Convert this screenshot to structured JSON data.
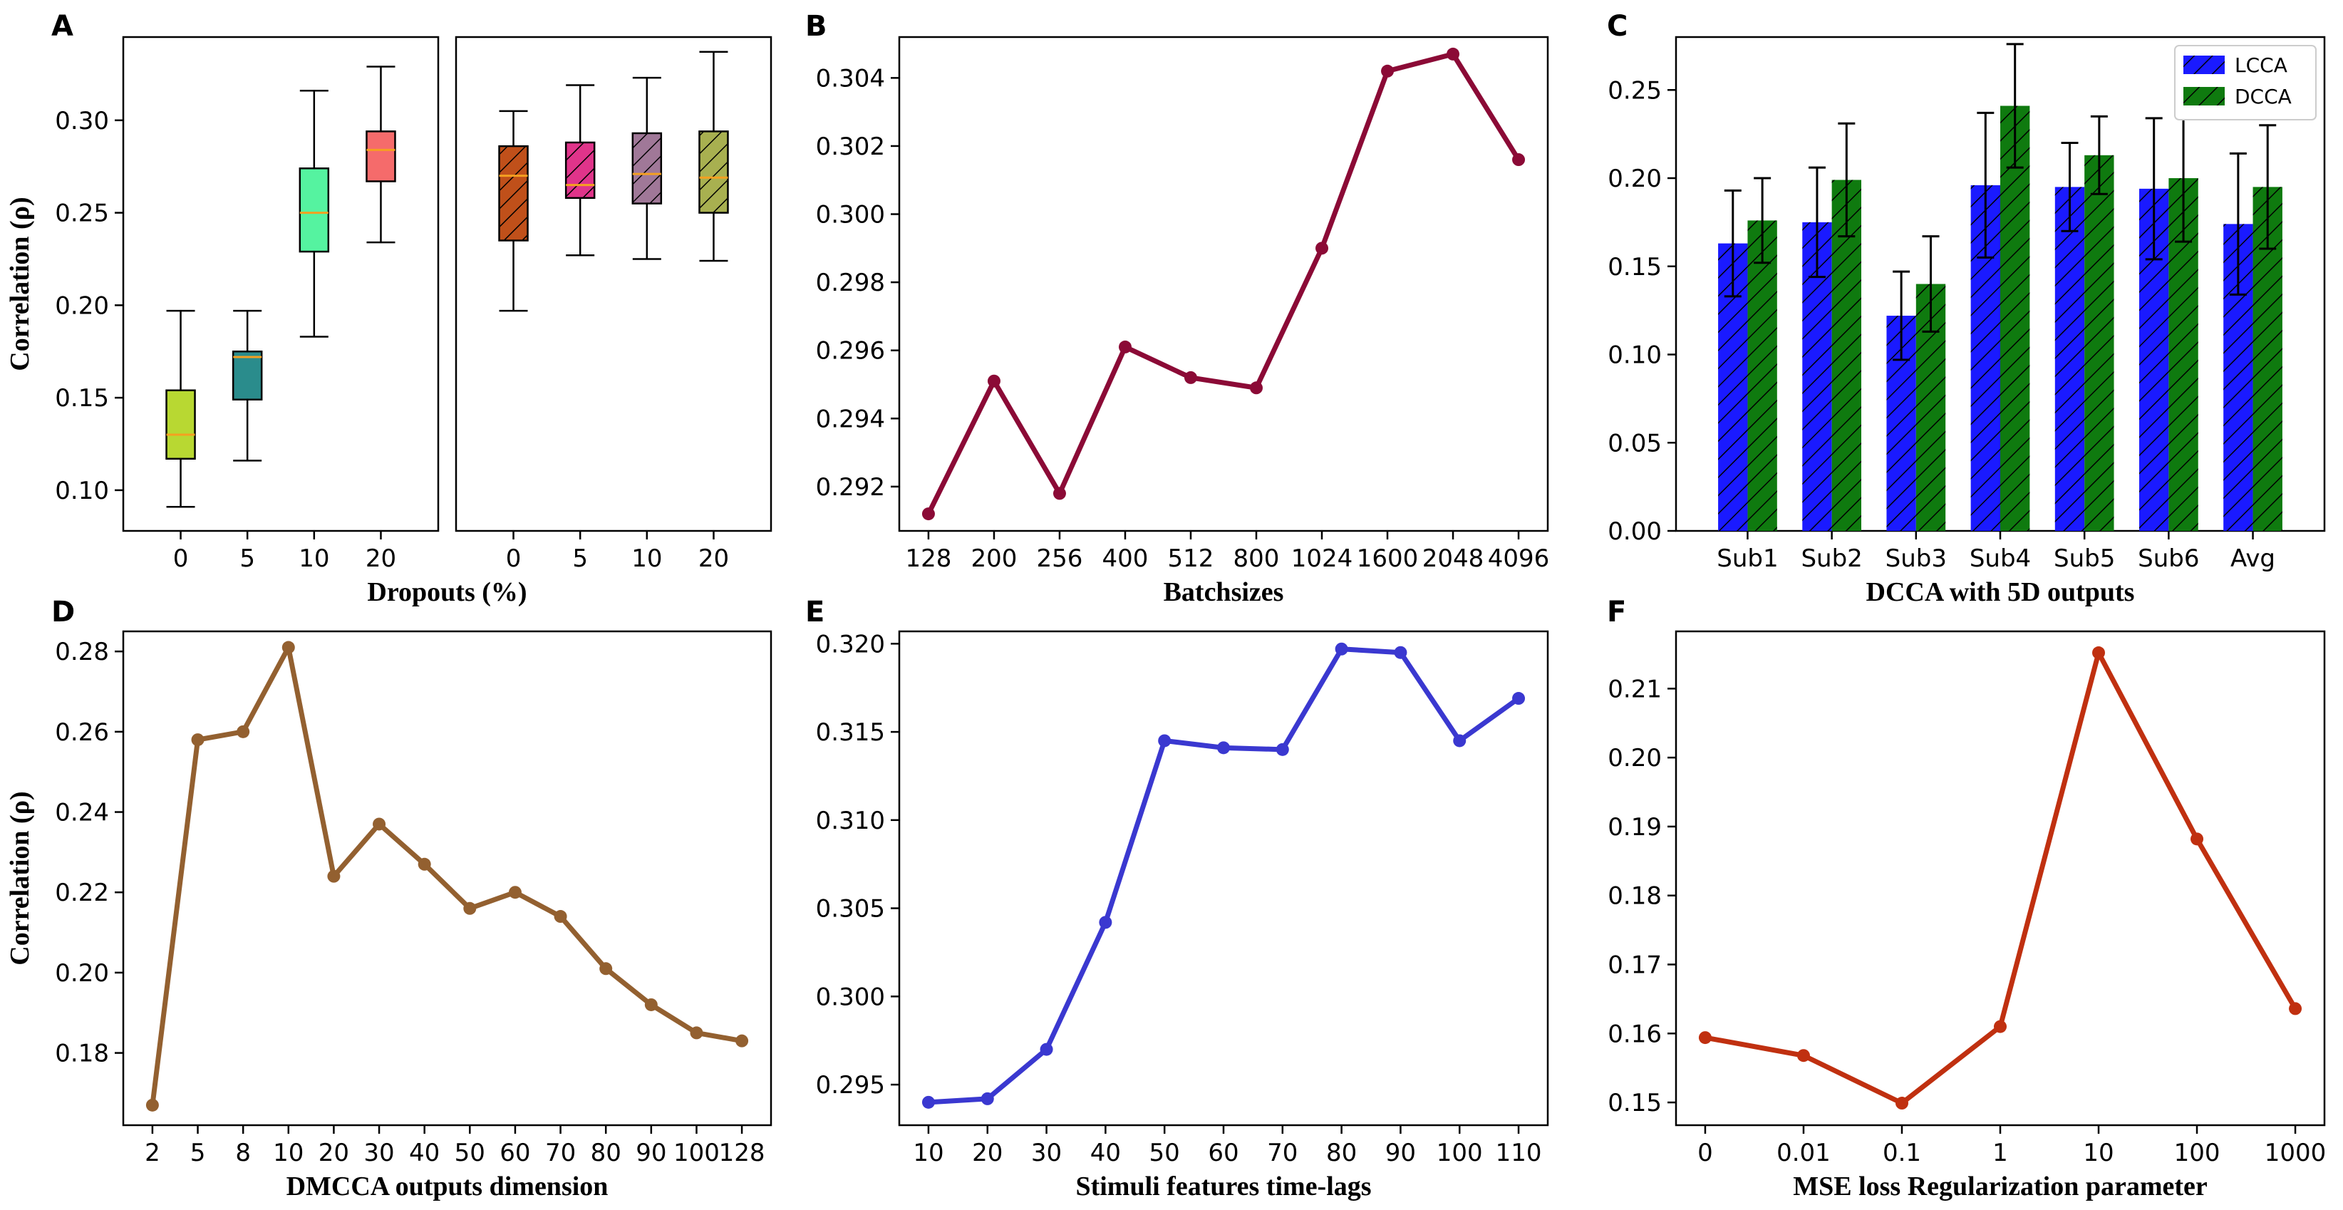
{
  "figure_id": "multi-panel-results",
  "chart_data": [
    {
      "panel": "A",
      "type": "box",
      "xlabel": "Dropouts (%)",
      "ylabel": "Correlation (ρ)",
      "ylim": [
        0.078,
        0.345
      ],
      "yticks": [
        0.1,
        0.15,
        0.2,
        0.25,
        0.3
      ],
      "ytick_labels": [
        "0.10",
        "0.15",
        "0.20",
        "0.25",
        "0.30"
      ],
      "groups": [
        {
          "name": "left",
          "categories": [
            "0",
            "5",
            "10",
            "20"
          ],
          "boxes": [
            {
              "whisker_low": 0.091,
              "q1": 0.117,
              "median": 0.13,
              "q3": 0.154,
              "whisker_high": 0.197,
              "color": "#b8d832",
              "hatch": false
            },
            {
              "whisker_low": 0.116,
              "q1": 0.149,
              "median": 0.172,
              "q3": 0.175,
              "whisker_high": 0.197,
              "color": "#2a8c8c",
              "hatch": false
            },
            {
              "whisker_low": 0.183,
              "q1": 0.229,
              "median": 0.25,
              "q3": 0.274,
              "whisker_high": 0.316,
              "color": "#55f3a0",
              "hatch": false
            },
            {
              "whisker_low": 0.234,
              "q1": 0.267,
              "median": 0.284,
              "q3": 0.294,
              "whisker_high": 0.329,
              "color": "#f56b6b",
              "hatch": false
            }
          ]
        },
        {
          "name": "right",
          "categories": [
            "0",
            "5",
            "10",
            "20"
          ],
          "boxes": [
            {
              "whisker_low": 0.197,
              "q1": 0.235,
              "median": 0.27,
              "q3": 0.286,
              "whisker_high": 0.305,
              "color": "#c0501a",
              "hatch": true
            },
            {
              "whisker_low": 0.227,
              "q1": 0.258,
              "median": 0.265,
              "q3": 0.288,
              "whisker_high": 0.319,
              "color": "#e0348a",
              "hatch": true
            },
            {
              "whisker_low": 0.225,
              "q1": 0.255,
              "median": 0.271,
              "q3": 0.293,
              "whisker_high": 0.323,
              "color": "#a07898",
              "hatch": true
            },
            {
              "whisker_low": 0.224,
              "q1": 0.25,
              "median": 0.269,
              "q3": 0.294,
              "whisker_high": 0.337,
              "color": "#a8b050",
              "hatch": true
            }
          ]
        }
      ]
    },
    {
      "panel": "B",
      "type": "line",
      "xlabel": "Batchsizes",
      "ylabel": "",
      "color": "#8b0a36",
      "ylim": [
        0.2907,
        0.3052
      ],
      "yticks": [
        0.292,
        0.294,
        0.296,
        0.298,
        0.3,
        0.302,
        0.304
      ],
      "ytick_labels": [
        "0.292",
        "0.294",
        "0.296",
        "0.298",
        "0.300",
        "0.302",
        "0.304"
      ],
      "categories": [
        "128",
        "200",
        "256",
        "400",
        "512",
        "800",
        "1024",
        "1600",
        "2048",
        "4096"
      ],
      "values": [
        0.2912,
        0.2951,
        0.2918,
        0.2961,
        0.2952,
        0.2949,
        0.299,
        0.3042,
        0.3047,
        0.3016
      ]
    },
    {
      "panel": "C",
      "type": "bar",
      "xlabel": "DCCA with 5D outputs",
      "ylabel": "",
      "ylim": [
        0.0,
        0.28
      ],
      "yticks": [
        0.0,
        0.05,
        0.1,
        0.15,
        0.2,
        0.25
      ],
      "ytick_labels": [
        "0.00",
        "0.05",
        "0.10",
        "0.15",
        "0.20",
        "0.25"
      ],
      "categories": [
        "Sub1",
        "Sub2",
        "Sub3",
        "Sub4",
        "Sub5",
        "Sub6",
        "Avg"
      ],
      "legend_position": "top-right",
      "series": [
        {
          "name": "LCCA",
          "color": "#1a1aff",
          "values": [
            0.163,
            0.175,
            0.122,
            0.196,
            0.195,
            0.194,
            0.174
          ],
          "errors": [
            0.03,
            0.031,
            0.025,
            0.041,
            0.025,
            0.04,
            0.04
          ]
        },
        {
          "name": "DCCA",
          "color": "#0f7a0f",
          "values": [
            0.176,
            0.199,
            0.14,
            0.241,
            0.213,
            0.2,
            0.195
          ],
          "errors": [
            0.024,
            0.032,
            0.027,
            0.035,
            0.022,
            0.036,
            0.035
          ]
        }
      ]
    },
    {
      "panel": "D",
      "type": "line",
      "xlabel": "DMCCA outputs dimension",
      "ylabel": "Correlation (ρ)",
      "color": "#936030",
      "ylim": [
        0.162,
        0.285
      ],
      "yticks": [
        0.18,
        0.2,
        0.22,
        0.24,
        0.26,
        0.28
      ],
      "ytick_labels": [
        "0.18",
        "0.20",
        "0.22",
        "0.24",
        "0.26",
        "0.28"
      ],
      "categories": [
        "2",
        "5",
        "8",
        "10",
        "20",
        "30",
        "40",
        "50",
        "60",
        "70",
        "80",
        "90",
        "100",
        "128"
      ],
      "values": [
        0.167,
        0.258,
        0.26,
        0.281,
        0.224,
        0.237,
        0.227,
        0.216,
        0.22,
        0.214,
        0.201,
        0.192,
        0.185,
        0.183
      ]
    },
    {
      "panel": "E",
      "type": "line",
      "xlabel": "Stimuli features time-lags",
      "ylabel": "",
      "color": "#3a38d0",
      "ylim": [
        0.2927,
        0.3207
      ],
      "yticks": [
        0.295,
        0.3,
        0.305,
        0.31,
        0.315,
        0.32
      ],
      "ytick_labels": [
        "0.295",
        "0.300",
        "0.305",
        "0.310",
        "0.315",
        "0.320"
      ],
      "categories": [
        "10",
        "20",
        "30",
        "40",
        "50",
        "60",
        "70",
        "80",
        "90",
        "100",
        "110"
      ],
      "values": [
        0.294,
        0.2942,
        0.297,
        0.3042,
        0.3145,
        0.3141,
        0.314,
        0.3197,
        0.3195,
        0.3145,
        0.3169
      ]
    },
    {
      "panel": "F",
      "type": "line",
      "xlabel": "MSE loss Regularization parameter",
      "ylabel": "",
      "color": "#c03010",
      "ylim": [
        0.1467,
        0.2183
      ],
      "yticks": [
        0.15,
        0.16,
        0.17,
        0.18,
        0.19,
        0.2,
        0.21
      ],
      "ytick_labels": [
        "0.15",
        "0.16",
        "0.17",
        "0.18",
        "0.19",
        "0.20",
        "0.21"
      ],
      "categories": [
        "0",
        "0.01",
        "0.1",
        "1",
        "10",
        "100",
        "1000"
      ],
      "values": [
        0.1594,
        0.1568,
        0.1499,
        0.161,
        0.2152,
        0.1882,
        0.1636
      ]
    }
  ]
}
